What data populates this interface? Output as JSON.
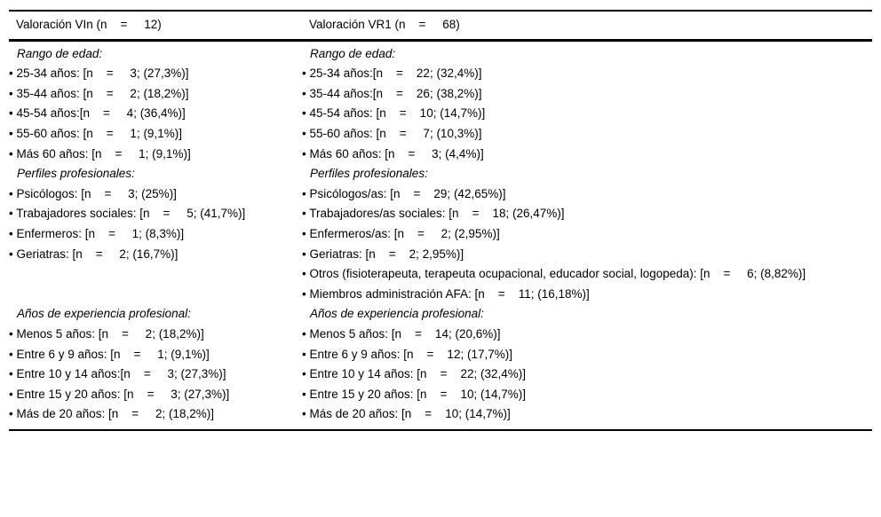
{
  "page": {
    "background_color": "#ffffff",
    "text_color": "#000000",
    "border_color": "#000000"
  },
  "table": {
    "columns": [
      {
        "header": "Valoración VIn (n    =     12)"
      },
      {
        "header": "Valoración VR1 (n    =     68)"
      }
    ],
    "rows": [
      {
        "left": {
          "text": "Rango de edad:",
          "type": "section"
        },
        "right": {
          "text": "Rango de edad:",
          "type": "section"
        }
      },
      {
        "left": {
          "text": "• 25-34 años: [n    =     3; (27,3%)]",
          "type": "item"
        },
        "right": {
          "text": "• 25-34 años:[n    =    22; (32,4%)]",
          "type": "item"
        }
      },
      {
        "left": {
          "text": "• 35-44 años: [n    =     2; (18,2%)]",
          "type": "item"
        },
        "right": {
          "text": "• 35-44 años:[n    =    26; (38,2%)]",
          "type": "item"
        }
      },
      {
        "left": {
          "text": "• 45-54 años:[n    =     4; (36,4%)]",
          "type": "item"
        },
        "right": {
          "text": "• 45-54 años: [n    =    10; (14,7%)]",
          "type": "item"
        }
      },
      {
        "left": {
          "text": "• 55-60 años: [n    =     1; (9,1%)]",
          "type": "item"
        },
        "right": {
          "text": "• 55-60 años: [n    =     7; (10,3%)]",
          "type": "item"
        }
      },
      {
        "left": {
          "text": "• Más 60 años: [n    =     1; (9,1%)]",
          "type": "item"
        },
        "right": {
          "text": "• Más 60 años: [n    =     3; (4,4%)]",
          "type": "item"
        }
      },
      {
        "left": {
          "text": "Perfiles profesionales:",
          "type": "section"
        },
        "right": {
          "text": "Perfiles profesionales:",
          "type": "section"
        }
      },
      {
        "left": {
          "text": "• Psicólogos: [n    =     3; (25%)]",
          "type": "item"
        },
        "right": {
          "text": "• Psicólogos/as: [n    =    29; (42,65%)]",
          "type": "item"
        }
      },
      {
        "left": {
          "text": "• Trabajadores sociales: [n    =     5; (41,7%)]",
          "type": "item"
        },
        "right": {
          "text": "• Trabajadores/as sociales: [n    =    18; (26,47%)]",
          "type": "item"
        }
      },
      {
        "left": {
          "text": "• Enfermeros: [n    =     1; (8,3%)]",
          "type": "item"
        },
        "right": {
          "text": "• Enfermeros/as: [n    =     2; (2,95%)]",
          "type": "item"
        }
      },
      {
        "left": {
          "text": "• Geriatras: [n    =     2; (16,7%)]",
          "type": "item"
        },
        "right": {
          "text": "• Geriatras: [n    =    2; 2,95%)]",
          "type": "item"
        }
      },
      {
        "left": {
          "text": "",
          "type": "empty"
        },
        "right": {
          "text": "• Otros (fisioterapeuta, terapeuta ocupacional, educador social, logopeda): [n    =     6; (8,82%)]",
          "type": "item"
        }
      },
      {
        "left": {
          "text": "",
          "type": "empty"
        },
        "right": {
          "text": "• Miembros administración AFA: [n    =    11; (16,18%)]",
          "type": "item"
        }
      },
      {
        "left": {
          "text": "Años de experiencia profesional:",
          "type": "section"
        },
        "right": {
          "text": "Años de experiencia profesional:",
          "type": "section"
        }
      },
      {
        "left": {
          "text": "• Menos 5 años: [n    =     2; (18,2%)]",
          "type": "item"
        },
        "right": {
          "text": "• Menos 5 años: [n    =    14; (20,6%)]",
          "type": "item"
        }
      },
      {
        "left": {
          "text": "• Entre 6 y 9 años: [n    =     1; (9,1%)]",
          "type": "item"
        },
        "right": {
          "text": "• Entre 6 y 9 años: [n    =    12; (17,7%)]",
          "type": "item"
        }
      },
      {
        "left": {
          "text": "• Entre 10 y 14 años:[n    =     3; (27,3%)]",
          "type": "item"
        },
        "right": {
          "text": "• Entre 10 y 14 años: [n    =    22; (32,4%)]",
          "type": "item"
        }
      },
      {
        "left": {
          "text": "• Entre 15 y 20 años: [n    =     3; (27,3%)]",
          "type": "item"
        },
        "right": {
          "text": "• Entre 15 y 20 años: [n    =    10; (14,7%)]",
          "type": "item"
        }
      },
      {
        "left": {
          "text": "• Más de 20 años: [n    =     2; (18,2%)]",
          "type": "item"
        },
        "right": {
          "text": "• Más de 20 años: [n    =    10; (14,7%)]",
          "type": "item"
        }
      }
    ]
  }
}
